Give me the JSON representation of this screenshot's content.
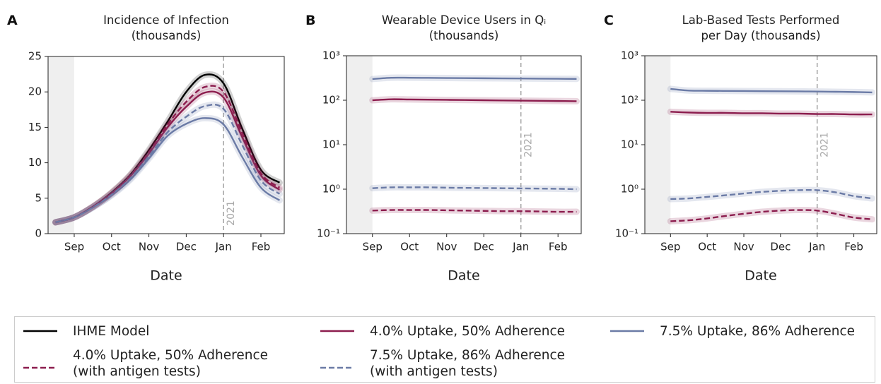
{
  "chart_data": [
    {
      "type": "line",
      "panel_label": "A",
      "title": "Incidence of Infection\n(thousands)",
      "x_label": "Date",
      "categories": [
        null,
        "Sep",
        null,
        "Oct",
        null,
        "Nov",
        null,
        "Dec",
        null,
        "Jan",
        null,
        "Feb",
        null
      ],
      "ylim": [
        0,
        25
      ],
      "yticks": [
        0,
        5,
        10,
        15,
        20,
        25
      ],
      "yscale": "linear",
      "annotation": {
        "text": "2021",
        "category": "Jan"
      },
      "series": [
        {
          "name": "IHME Model",
          "color": "#000000",
          "dash": false,
          "values": [
            1.6,
            2.3,
            3.8,
            5.8,
            8.3,
            11.8,
            15.8,
            20.0,
            22.4,
            21.2,
            14.8,
            9.0,
            7.2
          ]
        },
        {
          "name": "4.0% Uptake, 50% Adherence",
          "color": "#8c1d4e",
          "dash": false,
          "values": [
            1.6,
            2.3,
            3.8,
            5.7,
            8.1,
            11.3,
            15.0,
            17.9,
            19.9,
            19.2,
            13.6,
            8.2,
            6.2
          ]
        },
        {
          "name": "7.5% Uptake, 86% Adherence",
          "color": "#6b7ba6",
          "dash": false,
          "values": [
            1.6,
            2.3,
            3.7,
            5.4,
            7.6,
            10.6,
            13.8,
            15.5,
            16.3,
            15.4,
            10.8,
            6.5,
            4.7
          ]
        },
        {
          "name": "4.0% Uptake, 50% Adherence\n(with antigen tests)",
          "color": "#8c1d4e",
          "dash": true,
          "values": [
            1.6,
            2.3,
            3.8,
            5.7,
            8.2,
            11.5,
            15.4,
            18.6,
            20.7,
            20.0,
            14.2,
            8.5,
            6.5
          ]
        },
        {
          "name": "7.5% Uptake, 86% Adherence\n(with antigen tests)",
          "color": "#6b7ba6",
          "dash": true,
          "values": [
            1.6,
            2.3,
            3.7,
            5.5,
            7.8,
            10.9,
            14.3,
            16.5,
            18.0,
            17.6,
            12.5,
            7.5,
            5.6
          ]
        }
      ]
    },
    {
      "type": "line",
      "panel_label": "B",
      "title": "Wearable Device Users in Qᵢ\n(thousands)",
      "x_label": "Date",
      "categories": [
        null,
        "Sep",
        null,
        "Oct",
        null,
        "Nov",
        null,
        "Dec",
        null,
        "Jan",
        null,
        "Feb",
        null
      ],
      "ylim": [
        0.1,
        1000
      ],
      "yscale": "log",
      "yticks": [
        {
          "value": 0.1,
          "label": "10⁻¹"
        },
        {
          "value": 1,
          "label": "10⁰"
        },
        {
          "value": 10,
          "label": "10¹"
        },
        {
          "value": 100,
          "label": "10²"
        },
        {
          "value": 1000,
          "label": "10³"
        }
      ],
      "annotation": {
        "text": "2021",
        "category": "Jan"
      },
      "series": [
        {
          "color": "#8c1d4e",
          "dash": false,
          "values": [
            null,
            100,
            105,
            104,
            103,
            102,
            101,
            100,
            99,
            98,
            97,
            96,
            95
          ]
        },
        {
          "color": "#6b7ba6",
          "dash": false,
          "values": [
            null,
            300,
            320,
            320,
            318,
            316,
            314,
            312,
            310,
            308,
            306,
            304,
            302
          ]
        },
        {
          "color": "#8c1d4e",
          "dash": true,
          "values": [
            null,
            0.33,
            0.34,
            0.34,
            0.34,
            0.335,
            0.33,
            0.325,
            0.32,
            0.32,
            0.315,
            0.31,
            0.31
          ]
        },
        {
          "color": "#6b7ba6",
          "dash": true,
          "values": [
            null,
            1.05,
            1.1,
            1.1,
            1.1,
            1.08,
            1.07,
            1.06,
            1.05,
            1.04,
            1.03,
            1.02,
            1.0
          ]
        }
      ]
    },
    {
      "type": "line",
      "panel_label": "C",
      "title": "Lab-Based Tests Performed\nper Day (thousands)",
      "x_label": "Date",
      "categories": [
        null,
        "Sep",
        null,
        "Oct",
        null,
        "Nov",
        null,
        "Dec",
        null,
        "Jan",
        null,
        "Feb",
        null
      ],
      "ylim": [
        0.1,
        1000
      ],
      "yscale": "log",
      "yticks": [
        {
          "value": 0.1,
          "label": "10⁻¹"
        },
        {
          "value": 1,
          "label": "10⁰"
        },
        {
          "value": 10,
          "label": "10¹"
        },
        {
          "value": 100,
          "label": "10²"
        },
        {
          "value": 1000,
          "label": "10³"
        }
      ],
      "annotation": {
        "text": "2021",
        "category": "Jan"
      },
      "series": [
        {
          "color": "#8c1d4e",
          "dash": false,
          "values": [
            null,
            55,
            53,
            52,
            52,
            51,
            51,
            50,
            50,
            49,
            49,
            48,
            48
          ]
        },
        {
          "color": "#6b7ba6",
          "dash": false,
          "values": [
            null,
            180,
            165,
            163,
            162,
            161,
            160,
            159,
            158,
            157,
            155,
            153,
            150
          ]
        },
        {
          "color": "#8c1d4e",
          "dash": true,
          "values": [
            null,
            0.19,
            0.2,
            0.22,
            0.25,
            0.28,
            0.31,
            0.33,
            0.34,
            0.33,
            0.28,
            0.23,
            0.21
          ]
        },
        {
          "color": "#6b7ba6",
          "dash": true,
          "values": [
            null,
            0.6,
            0.62,
            0.67,
            0.73,
            0.8,
            0.87,
            0.92,
            0.95,
            0.95,
            0.85,
            0.7,
            0.62
          ]
        }
      ]
    }
  ]
}
